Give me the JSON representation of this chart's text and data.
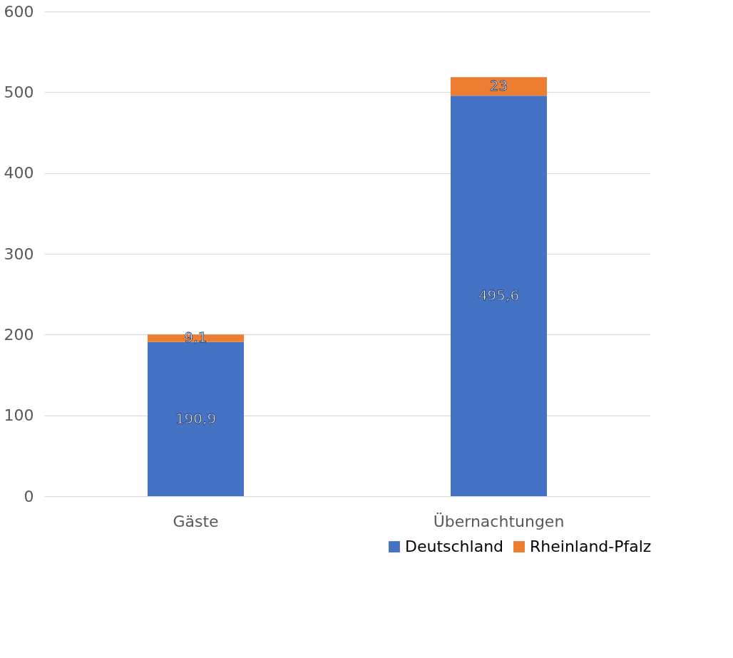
{
  "chart_data": {
    "type": "bar",
    "stacked": true,
    "categories": [
      "Gäste",
      "Übernachtungen"
    ],
    "series": [
      {
        "name": "Deutschland",
        "color": "#4472c4",
        "values": [
          190.9,
          495.6
        ],
        "value_labels": [
          "190,9",
          "495,6"
        ]
      },
      {
        "name": "Rheinland-Pfalz",
        "color": "#ed7d31",
        "values": [
          9.1,
          23
        ],
        "value_labels": [
          "9,1",
          "23"
        ]
      }
    ],
    "ylim": [
      0,
      600
    ],
    "yticks": [
      0,
      100,
      200,
      300,
      400,
      500,
      600
    ],
    "grid": "y",
    "legend": "bottom right"
  }
}
